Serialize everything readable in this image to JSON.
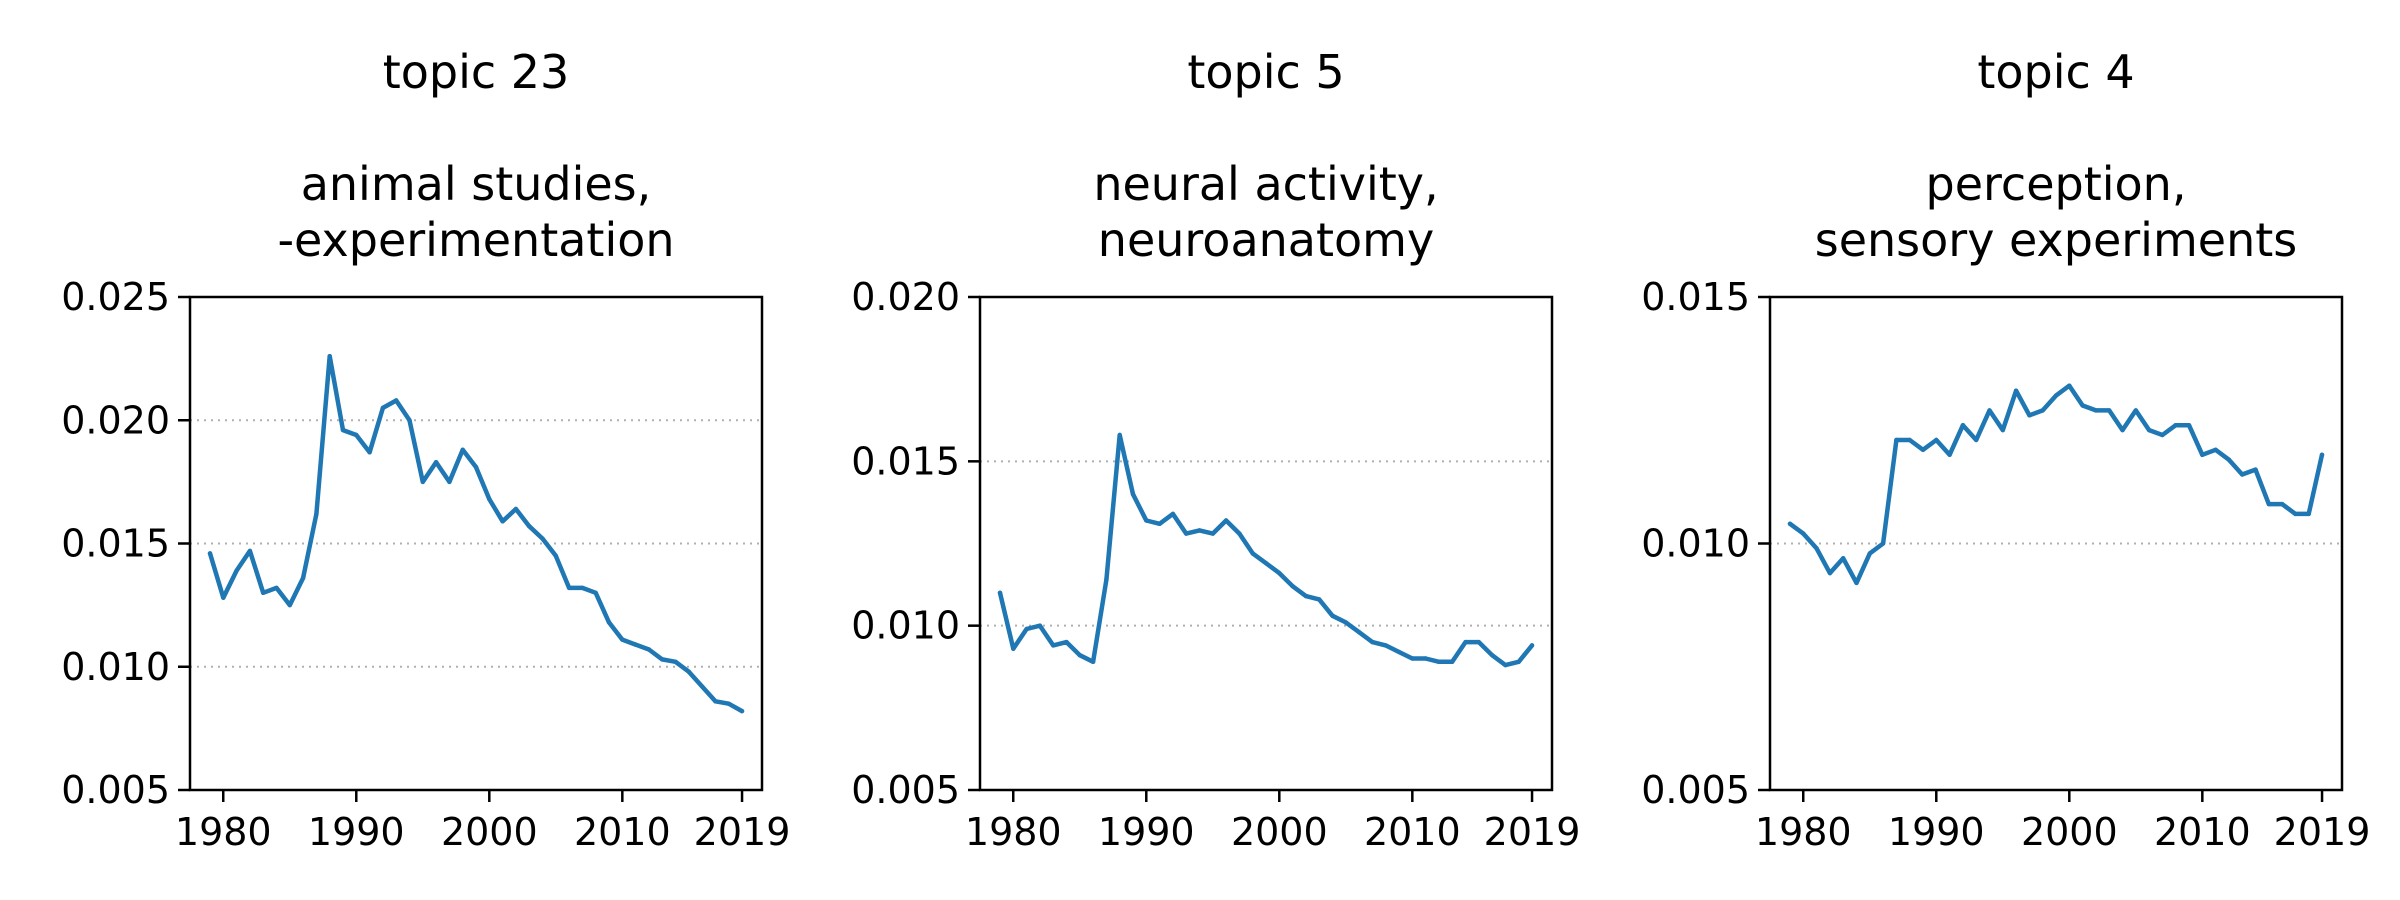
{
  "colors": {
    "line": "#1f77b4",
    "axis": "#000000",
    "grid": "#b0b0b0"
  },
  "chart_data": [
    {
      "type": "line",
      "title_line1": "topic 23",
      "title_line2": "animal studies,",
      "title_line3": "-experimentation",
      "xticks": [
        1980,
        1990,
        2000,
        2010,
        2019
      ],
      "yticks": [
        "0.005",
        "0.010",
        "0.015",
        "0.020",
        "0.025"
      ],
      "ylim": [
        0.005,
        0.025
      ],
      "xlim": [
        1977.5,
        2020.5
      ],
      "grid_y": [
        0.01,
        0.015,
        0.02
      ],
      "grid": "dotted horizontal",
      "x": [
        1979,
        1980,
        1981,
        1982,
        1983,
        1984,
        1985,
        1986,
        1987,
        1988,
        1989,
        1990,
        1991,
        1992,
        1993,
        1994,
        1995,
        1996,
        1997,
        1998,
        1999,
        2000,
        2001,
        2002,
        2003,
        2004,
        2005,
        2006,
        2007,
        2008,
        2009,
        2010,
        2011,
        2012,
        2013,
        2014,
        2015,
        2016,
        2017,
        2018,
        2019
      ],
      "y": [
        0.0146,
        0.0128,
        0.0139,
        0.0147,
        0.013,
        0.0132,
        0.0125,
        0.0136,
        0.0162,
        0.0226,
        0.0196,
        0.0194,
        0.0187,
        0.0205,
        0.0208,
        0.02,
        0.0175,
        0.0183,
        0.0175,
        0.0188,
        0.0181,
        0.0168,
        0.0159,
        0.0164,
        0.0157,
        0.0152,
        0.0145,
        0.0132,
        0.0132,
        0.013,
        0.0118,
        0.0111,
        0.0109,
        0.0107,
        0.0103,
        0.0102,
        0.0098,
        0.0092,
        0.0086,
        0.0085,
        0.0082
      ]
    },
    {
      "type": "line",
      "title_line1": "topic 5",
      "title_line2": "neural activity,",
      "title_line3": "neuroanatomy",
      "xticks": [
        1980,
        1990,
        2000,
        2010,
        2019
      ],
      "yticks": [
        "0.005",
        "0.010",
        "0.015",
        "0.020"
      ],
      "ylim": [
        0.005,
        0.02
      ],
      "xlim": [
        1977.5,
        2020.5
      ],
      "grid_y": [
        0.01,
        0.015
      ],
      "grid": "dotted horizontal",
      "x": [
        1979,
        1980,
        1981,
        1982,
        1983,
        1984,
        1985,
        1986,
        1987,
        1988,
        1989,
        1990,
        1991,
        1992,
        1993,
        1994,
        1995,
        1996,
        1997,
        1998,
        1999,
        2000,
        2001,
        2002,
        2003,
        2004,
        2005,
        2006,
        2007,
        2008,
        2009,
        2010,
        2011,
        2012,
        2013,
        2014,
        2015,
        2016,
        2017,
        2018,
        2019
      ],
      "y": [
        0.011,
        0.0093,
        0.0099,
        0.01,
        0.0094,
        0.0095,
        0.0091,
        0.0089,
        0.0114,
        0.0158,
        0.014,
        0.0132,
        0.0131,
        0.0134,
        0.0128,
        0.0129,
        0.0128,
        0.0132,
        0.0128,
        0.0122,
        0.0119,
        0.0116,
        0.0112,
        0.0109,
        0.0108,
        0.0103,
        0.0101,
        0.0098,
        0.0095,
        0.0094,
        0.0092,
        0.009,
        0.009,
        0.0089,
        0.0089,
        0.0095,
        0.0095,
        0.0091,
        0.0088,
        0.0089,
        0.0094
      ]
    },
    {
      "type": "line",
      "title_line1": "topic 4",
      "title_line2": "perception,",
      "title_line3": "sensory experiments",
      "xticks": [
        1980,
        1990,
        2000,
        2010,
        2019
      ],
      "yticks": [
        "0.005",
        "0.010",
        "0.015"
      ],
      "ylim": [
        0.005,
        0.015
      ],
      "xlim": [
        1977.5,
        2020.5
      ],
      "grid_y": [
        0.01
      ],
      "grid": "dotted horizontal",
      "x": [
        1979,
        1980,
        1981,
        1982,
        1983,
        1984,
        1985,
        1986,
        1987,
        1988,
        1989,
        1990,
        1991,
        1992,
        1993,
        1994,
        1995,
        1996,
        1997,
        1998,
        1999,
        2000,
        2001,
        2002,
        2003,
        2004,
        2005,
        2006,
        2007,
        2008,
        2009,
        2010,
        2011,
        2012,
        2013,
        2014,
        2015,
        2016,
        2017,
        2018,
        2019
      ],
      "y": [
        0.0104,
        0.0102,
        0.0099,
        0.0094,
        0.0097,
        0.0092,
        0.0098,
        0.01,
        0.0121,
        0.0121,
        0.0119,
        0.0121,
        0.0118,
        0.0124,
        0.0121,
        0.0127,
        0.0123,
        0.0131,
        0.0126,
        0.0127,
        0.013,
        0.0132,
        0.0128,
        0.0127,
        0.0127,
        0.0123,
        0.0127,
        0.0123,
        0.0122,
        0.0124,
        0.0124,
        0.0118,
        0.0119,
        0.0117,
        0.0114,
        0.0115,
        0.0108,
        0.0108,
        0.0106,
        0.0106,
        0.0118
      ]
    }
  ]
}
